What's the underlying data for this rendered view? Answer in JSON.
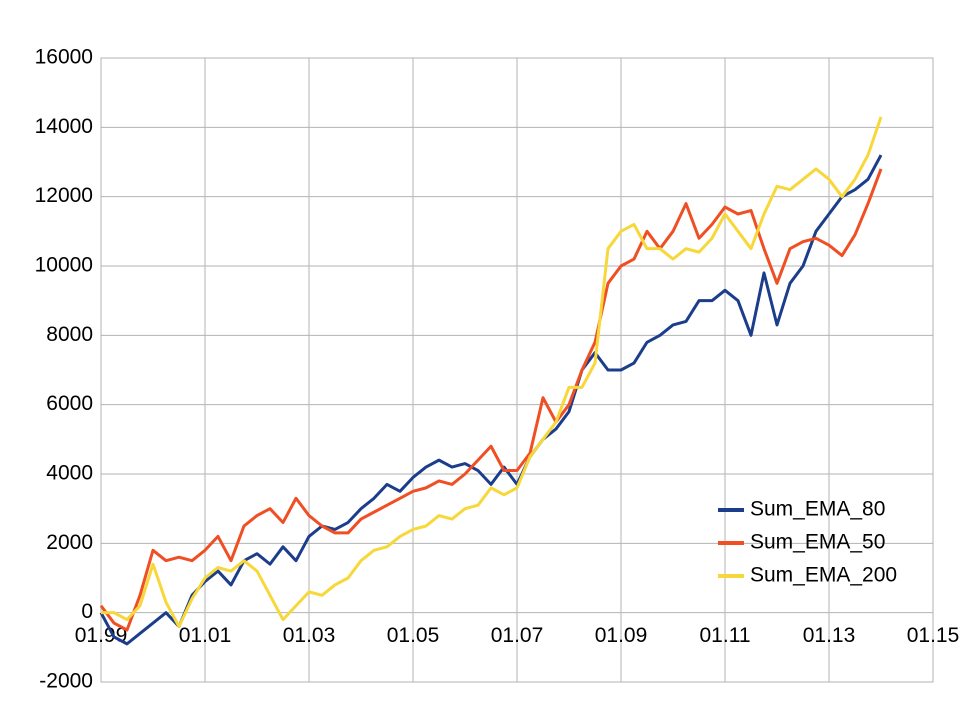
{
  "chart_data": {
    "type": "line",
    "x": [
      1999.0,
      1999.25,
      1999.5,
      1999.75,
      2000.0,
      2000.25,
      2000.5,
      2000.75,
      2001.0,
      2001.25,
      2001.5,
      2001.75,
      2002.0,
      2002.25,
      2002.5,
      2002.75,
      2003.0,
      2003.25,
      2003.5,
      2003.75,
      2004.0,
      2004.25,
      2004.5,
      2004.75,
      2005.0,
      2005.25,
      2005.5,
      2005.75,
      2006.0,
      2006.25,
      2006.5,
      2006.75,
      2007.0,
      2007.25,
      2007.5,
      2007.75,
      2008.0,
      2008.25,
      2008.5,
      2008.75,
      2009.0,
      2009.25,
      2009.5,
      2009.75,
      2010.0,
      2010.25,
      2010.5,
      2010.75,
      2011.0,
      2011.25,
      2011.5,
      2011.75,
      2012.0,
      2012.25,
      2012.5,
      2012.75,
      2013.0,
      2013.25,
      2013.5,
      2013.75,
      2014.0
    ],
    "series": [
      {
        "name": "Sum_EMA_80",
        "color": "#1b3d8c",
        "values": [
          0,
          -700,
          -900,
          -600,
          -300,
          0,
          -400,
          500,
          900,
          1200,
          800,
          1500,
          1700,
          1400,
          1900,
          1500,
          2200,
          2500,
          2400,
          2600,
          3000,
          3300,
          3700,
          3500,
          3900,
          4200,
          4400,
          4200,
          4300,
          4100,
          3700,
          4200,
          3700,
          4500,
          5000,
          5300,
          5800,
          7000,
          7500,
          7000,
          7000,
          7200,
          7800,
          8000,
          8300,
          8400,
          9000,
          9000,
          9300,
          9000,
          8000,
          9800,
          8300,
          9500,
          10000,
          11000,
          11500,
          12000,
          12200,
          12500,
          13200
        ]
      },
      {
        "name": "Sum_EMA_50",
        "color": "#f04e23",
        "values": [
          200,
          -300,
          -500,
          500,
          1800,
          1500,
          1600,
          1500,
          1800,
          2200,
          1500,
          2500,
          2800,
          3000,
          2600,
          3300,
          2800,
          2500,
          2300,
          2300,
          2700,
          2900,
          3100,
          3300,
          3500,
          3600,
          3800,
          3700,
          4000,
          4400,
          4800,
          4100,
          4100,
          4600,
          6200,
          5500,
          6000,
          7000,
          7800,
          9500,
          10000,
          10200,
          11000,
          10500,
          11000,
          11800,
          10800,
          11200,
          11700,
          11500,
          11600,
          10500,
          9500,
          10500,
          10700,
          10800,
          10600,
          10300,
          10900,
          11800,
          12800
        ]
      },
      {
        "name": "Sum_EMA_200",
        "color": "#f7d73a",
        "values": [
          0,
          0,
          -200,
          200,
          1400,
          300,
          -400,
          400,
          1000,
          1300,
          1200,
          1500,
          1200,
          500,
          -200,
          200,
          600,
          500,
          800,
          1000,
          1500,
          1800,
          1900,
          2200,
          2400,
          2500,
          2800,
          2700,
          3000,
          3100,
          3600,
          3400,
          3600,
          4500,
          5000,
          5500,
          6500,
          6500,
          7200,
          10500,
          11000,
          11200,
          10500,
          10500,
          10200,
          10500,
          10400,
          10800,
          11500,
          11000,
          10500,
          11500,
          12300,
          12200,
          12500,
          12800,
          12500,
          12000,
          12500,
          13200,
          14300
        ]
      }
    ],
    "xlim": [
      1999,
      2015
    ],
    "xticks": [
      {
        "value": 1999,
        "label": "01.99"
      },
      {
        "value": 2001,
        "label": "01.01"
      },
      {
        "value": 2003,
        "label": "01.03"
      },
      {
        "value": 2005,
        "label": "01.05"
      },
      {
        "value": 2007,
        "label": "01.07"
      },
      {
        "value": 2009,
        "label": "01.09"
      },
      {
        "value": 2011,
        "label": "01.11"
      },
      {
        "value": 2013,
        "label": "01.13"
      },
      {
        "value": 2015,
        "label": "01.15"
      }
    ],
    "ylim": [
      -2000,
      16000
    ],
    "yticks": [
      -2000,
      0,
      2000,
      4000,
      6000,
      8000,
      10000,
      12000,
      14000,
      16000
    ],
    "grid": true,
    "legend": "lower right"
  }
}
